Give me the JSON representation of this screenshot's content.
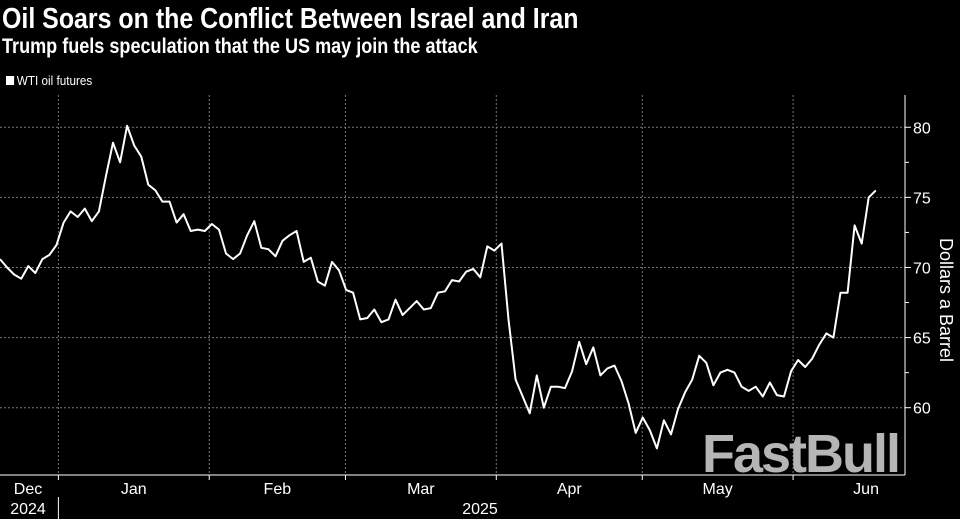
{
  "title": "Oil Soars on the Conflict Between Israel and Iran",
  "subtitle": "Trump fuels speculation that the US may join the attack",
  "watermark": "FastBull",
  "colors": {
    "background": "#000000",
    "line": "#ffffff",
    "grid": "#777777",
    "watermark": "#b5b5b5"
  },
  "chart_data": {
    "type": "line",
    "legend": [
      "WTI oil futures"
    ],
    "legend_placement": "top-left",
    "grid": true,
    "ylabel": "Dollars a Barrel",
    "yaxis_side": "right",
    "ylim": [
      55.2,
      82.3
    ],
    "yticks": [
      60,
      65,
      70,
      75,
      80
    ],
    "xlim": [
      "2024-12-20",
      "2025-06-24"
    ],
    "x_range": [
      "2024-12-20",
      "2025-06-18"
    ],
    "month_ticks": [
      {
        "label": "Dec",
        "date": "2024-12-01"
      },
      {
        "label": "Jan",
        "date": "2025-01-01"
      },
      {
        "label": "Feb",
        "date": "2025-02-01"
      },
      {
        "label": "Mar",
        "date": "2025-03-01"
      },
      {
        "label": "Apr",
        "date": "2025-04-01"
      },
      {
        "label": "May",
        "date": "2025-05-01"
      },
      {
        "label": "Jun",
        "date": "2025-06-01"
      }
    ],
    "year_labels": [
      {
        "label": "2024"
      },
      {
        "label": "2025"
      }
    ],
    "series": [
      {
        "name": "WTI oil futures",
        "values": [
          70.6,
          70.0,
          69.5,
          69.2,
          70.1,
          69.6,
          70.6,
          70.9,
          71.6,
          73.2,
          74.0,
          73.6,
          74.2,
          73.3,
          74.0,
          76.5,
          78.9,
          77.5,
          80.1,
          78.7,
          77.9,
          75.9,
          75.5,
          74.7,
          74.7,
          73.2,
          73.8,
          72.6,
          72.7,
          72.6,
          73.1,
          72.7,
          71.0,
          70.6,
          71.0,
          72.3,
          73.3,
          71.4,
          71.3,
          70.8,
          71.9,
          72.3,
          72.6,
          70.4,
          70.7,
          69.0,
          68.7,
          70.4,
          69.8,
          68.4,
          68.2,
          66.3,
          66.4,
          67.0,
          66.1,
          66.3,
          67.7,
          66.6,
          67.1,
          67.6,
          67.0,
          67.1,
          68.2,
          68.3,
          69.1,
          69.0,
          69.7,
          69.9,
          69.3,
          71.5,
          71.2,
          71.7,
          66.3,
          62.0,
          60.8,
          59.6,
          62.3,
          60.0,
          61.5,
          61.5,
          61.4,
          62.6,
          64.7,
          63.1,
          64.3,
          62.3,
          62.8,
          63.0,
          61.9,
          60.3,
          58.2,
          59.3,
          58.4,
          57.1,
          59.1,
          58.1,
          59.9,
          61.1,
          62.0,
          63.7,
          63.2,
          61.6,
          62.5,
          62.7,
          62.5,
          61.5,
          61.2,
          61.5,
          60.8,
          61.8,
          60.9,
          60.8,
          62.6,
          63.4,
          62.9,
          63.5,
          64.5,
          65.3,
          65.0,
          68.2,
          68.2,
          73.0,
          71.7,
          75.0,
          75.5
        ]
      }
    ]
  }
}
